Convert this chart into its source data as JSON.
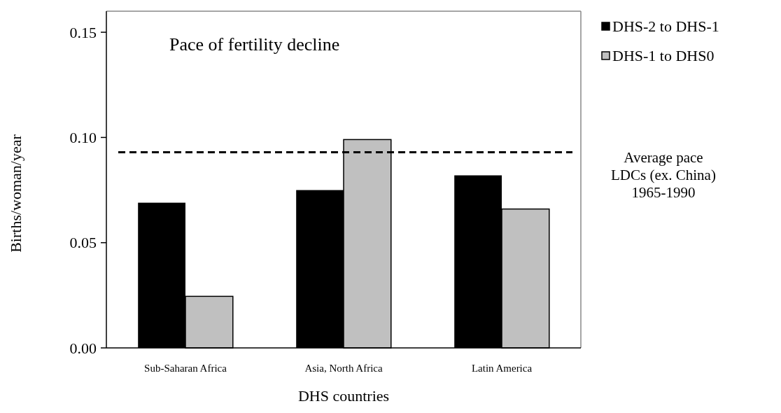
{
  "chart_data": {
    "type": "bar",
    "title": "Pace of fertility decline",
    "xlabel": "DHS countries",
    "ylabel": "Births/woman/year",
    "categories": [
      "Sub-Saharan Africa",
      "Asia, North Africa",
      "Latin America"
    ],
    "series": [
      {
        "name": "DHS-2 to DHS-1",
        "color": "#000000",
        "values": [
          0.069,
          0.075,
          0.082
        ]
      },
      {
        "name": "DHS-1 to DHS0",
        "color": "#c0c0c0",
        "values": [
          0.0245,
          0.099,
          0.066
        ]
      }
    ],
    "ylim": [
      0,
      0.16
    ],
    "yticks": [
      {
        "value": 0,
        "label": "0.00"
      },
      {
        "value": 0.05,
        "label": "0.05"
      },
      {
        "value": 0.1,
        "label": "0.10"
      },
      {
        "value": 0.15,
        "label": "0.15"
      }
    ],
    "ref_lines": [
      {
        "axis": "y",
        "value": 0.093,
        "label": "Average pace\nLDCs (ex. China)\n1965-1990",
        "line_style": "dashed",
        "color": "#000000"
      }
    ],
    "legend": "top right",
    "grid": false
  }
}
